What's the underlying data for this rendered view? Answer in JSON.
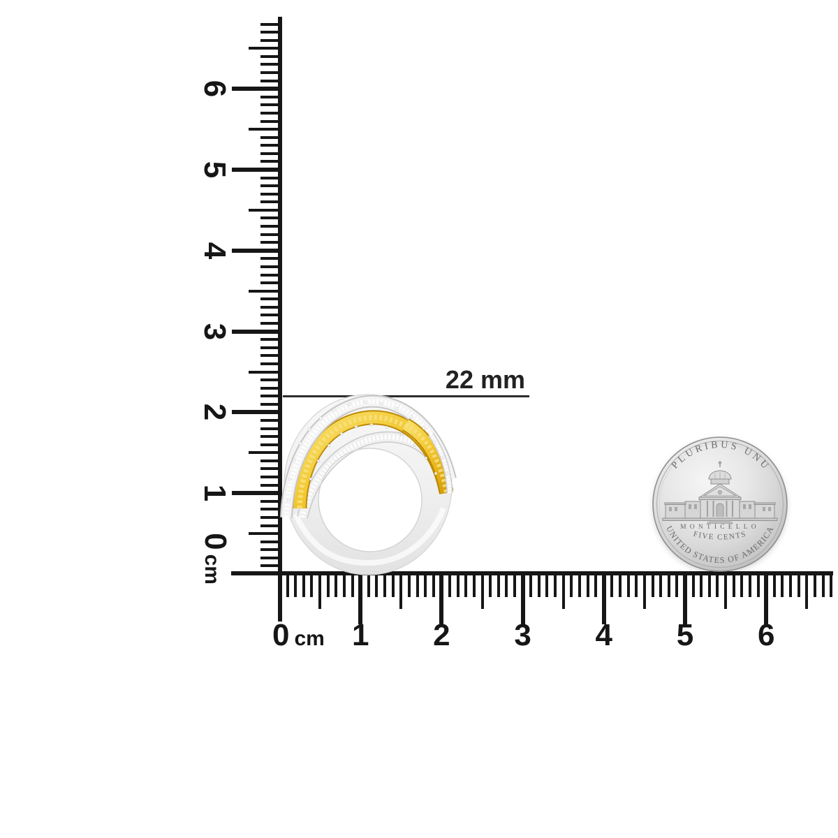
{
  "rulers": {
    "ink_color": "#161616",
    "unit_label": "cm",
    "vertical_labels": [
      "0",
      "1",
      "2",
      "3",
      "4",
      "5",
      "6"
    ],
    "horizontal_labels": [
      "0",
      "1",
      "2",
      "3",
      "4",
      "5",
      "6"
    ]
  },
  "measurement": {
    "label": "22 mm"
  },
  "ring": {
    "gold_color": "#EFC62E",
    "silver_color": "#F2F2F2"
  },
  "coin": {
    "legend_top": "E PLURIBUS UNUM",
    "building_label": "MONTICELLO",
    "denomination": "FIVE CENTS",
    "legend_bottom": "UNITED STATES OF AMERICA",
    "metal_color": "#D6D6D6"
  }
}
